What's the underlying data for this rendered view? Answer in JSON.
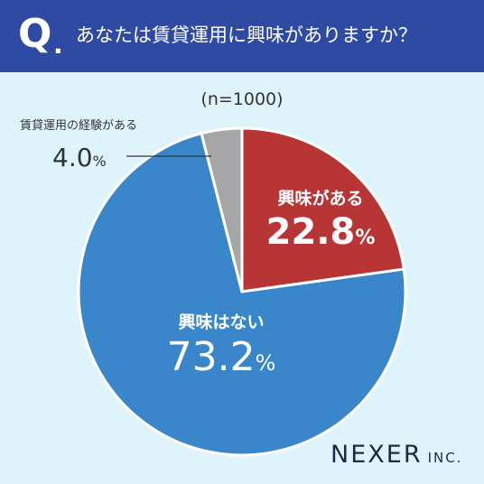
{
  "header": {
    "q": "Q",
    "dot": ".",
    "question": "あなたは賃貸運用に興味がありますか？"
  },
  "colors": {
    "header_bg": "#2e4aa3",
    "panel_bg": "#dff4fa",
    "interest": "#b83535",
    "no_interest": "#3a86cb",
    "experience": "#a6a6a6"
  },
  "chart_data": {
    "type": "pie",
    "subtitle": "(n=1000)",
    "start_angle_deg": 0,
    "direction": "clockwise",
    "slices": [
      {
        "label": "興味がある",
        "value": 22.8,
        "display": "22.8",
        "unit": "%",
        "color": "#b83535"
      },
      {
        "label": "興味はない",
        "value": 73.2,
        "display": "73.2",
        "unit": "%",
        "color": "#3a86cb"
      },
      {
        "label": "賃貸運用の経験がある",
        "value": 4.0,
        "display": "4.0",
        "unit": "%",
        "color": "#a6a6a6"
      }
    ]
  },
  "brand": {
    "main": "NEXER",
    "sub": "INC."
  }
}
